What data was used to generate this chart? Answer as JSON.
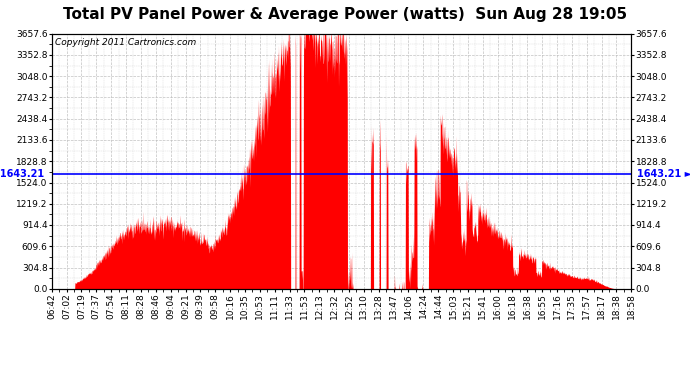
{
  "title": "Total PV Panel Power & Average Power (watts)  Sun Aug 28 19:05",
  "copyright": "Copyright 2011 Cartronics.com",
  "avg_power": 1643.21,
  "y_max": 3657.6,
  "y_ticks": [
    0.0,
    304.8,
    609.6,
    914.4,
    1219.2,
    1524.0,
    1828.8,
    2133.6,
    2438.4,
    2743.2,
    3048.0,
    3352.8,
    3657.6
  ],
  "x_labels": [
    "06:42",
    "07:02",
    "07:19",
    "07:37",
    "07:54",
    "08:11",
    "08:28",
    "08:46",
    "09:04",
    "09:21",
    "09:39",
    "09:58",
    "10:16",
    "10:35",
    "10:53",
    "11:11",
    "11:33",
    "11:53",
    "12:13",
    "12:32",
    "12:52",
    "13:10",
    "13:28",
    "13:47",
    "14:06",
    "14:24",
    "14:44",
    "15:03",
    "15:21",
    "15:41",
    "16:00",
    "16:18",
    "16:38",
    "16:55",
    "17:16",
    "17:35",
    "17:57",
    "18:17",
    "18:38",
    "18:58"
  ],
  "fill_color": "#FF0000",
  "line_color": "#0000FF",
  "grid_color": "#BBBBBB",
  "background_color": "#FFFFFF",
  "title_fontsize": 11,
  "label_fontsize": 6.5,
  "avg_label_fontsize": 7,
  "copyright_fontsize": 6.5
}
